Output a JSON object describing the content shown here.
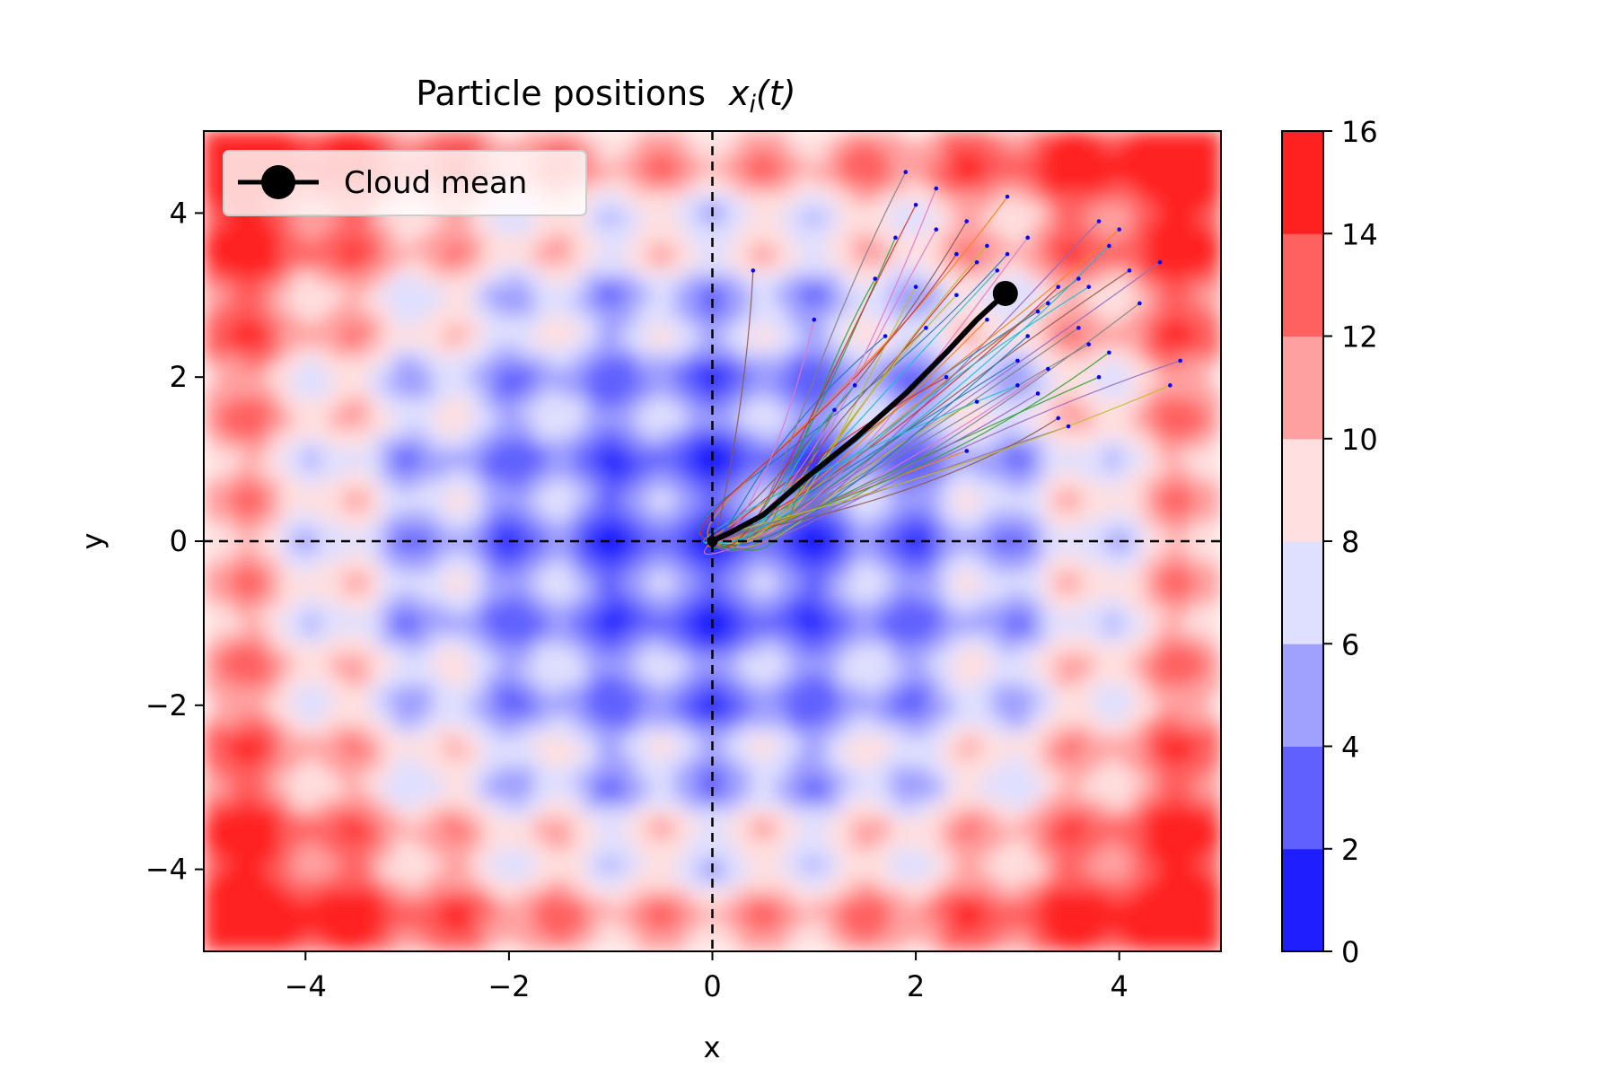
{
  "chart_data": {
    "type": "contour",
    "title": "Particle positions",
    "title_math": "x",
    "title_math_sub": "i",
    "title_math_arg": "(t)",
    "xlabel": "x",
    "ylabel": "y",
    "xlim": [
      -5,
      5
    ],
    "ylim": [
      -5,
      5
    ],
    "x_ticks": [
      -4,
      -2,
      0,
      2,
      4
    ],
    "y_ticks": [
      -4,
      -2,
      0,
      2,
      4
    ],
    "x_tick_labels": [
      "−4",
      "−2",
      "0",
      "2",
      "4"
    ],
    "y_tick_labels": [
      "−4",
      "−2",
      "0",
      "2",
      "4"
    ],
    "contour_levels": [
      0,
      2,
      4,
      6,
      8,
      10,
      12,
      14,
      16
    ],
    "contour_level_labels": [
      "0",
      "2",
      "4",
      "6",
      "8",
      "10",
      "12",
      "14",
      "16"
    ],
    "contour_colors": [
      "#1e1eff",
      "#6060ff",
      "#a0a0ff",
      "#dfdfff",
      "#ffdfdf",
      "#ffa0a0",
      "#ff6060",
      "#ff2020"
    ],
    "reference_lines": {
      "x": 0,
      "y": 0,
      "style": "dashed",
      "color": "#000000"
    },
    "legend": {
      "label": "Cloud mean",
      "position": "upper-left"
    },
    "mean_path": {
      "x": [
        0.0,
        0.2,
        0.5,
        0.9,
        1.4,
        1.9,
        2.3,
        2.6,
        2.88
      ],
      "y": [
        0.0,
        0.12,
        0.32,
        0.75,
        1.25,
        1.8,
        2.3,
        2.7,
        3.02
      ]
    },
    "mean_end": {
      "x": 2.88,
      "y": 3.02
    },
    "particles": {
      "count": 150,
      "color": "#0000ff",
      "x": [
        2.9,
        3.3,
        1.8,
        2.6,
        3.8,
        4.1,
        2.2,
        3.6,
        2.4,
        3.9,
        3.0,
        2.7,
        1.6,
        3.4,
        4.4,
        2.5,
        3.1,
        3.7,
        2.0,
        2.8,
        3.2,
        4.0,
        1.2,
        2.3,
        3.5,
        2.1,
        3.3,
        4.2,
        2.6,
        3.0,
        1.7,
        2.9,
        3.8,
        2.4,
        4.6,
        3.4,
        2.2,
        3.6,
        2.7,
        1.4,
        3.1,
        2.5,
        3.9,
        2.0,
        3.2,
        0.4,
        1.0,
        1.9,
        4.5,
        3.7
      ],
      "y": [
        3.5,
        2.9,
        3.7,
        3.4,
        3.9,
        3.3,
        3.8,
        2.6,
        3.0,
        3.6,
        2.2,
        2.7,
        3.2,
        3.1,
        3.4,
        3.9,
        3.7,
        2.4,
        3.1,
        3.3,
        2.8,
        3.8,
        1.6,
        2.0,
        1.4,
        2.6,
        2.1,
        2.9,
        1.7,
        1.9,
        2.5,
        4.2,
        2.0,
        3.5,
        2.2,
        1.5,
        4.3,
        3.2,
        3.6,
        1.9,
        2.5,
        1.1,
        2.3,
        4.1,
        1.8,
        3.3,
        2.7,
        4.5,
        1.9,
        3.1
      ]
    }
  }
}
